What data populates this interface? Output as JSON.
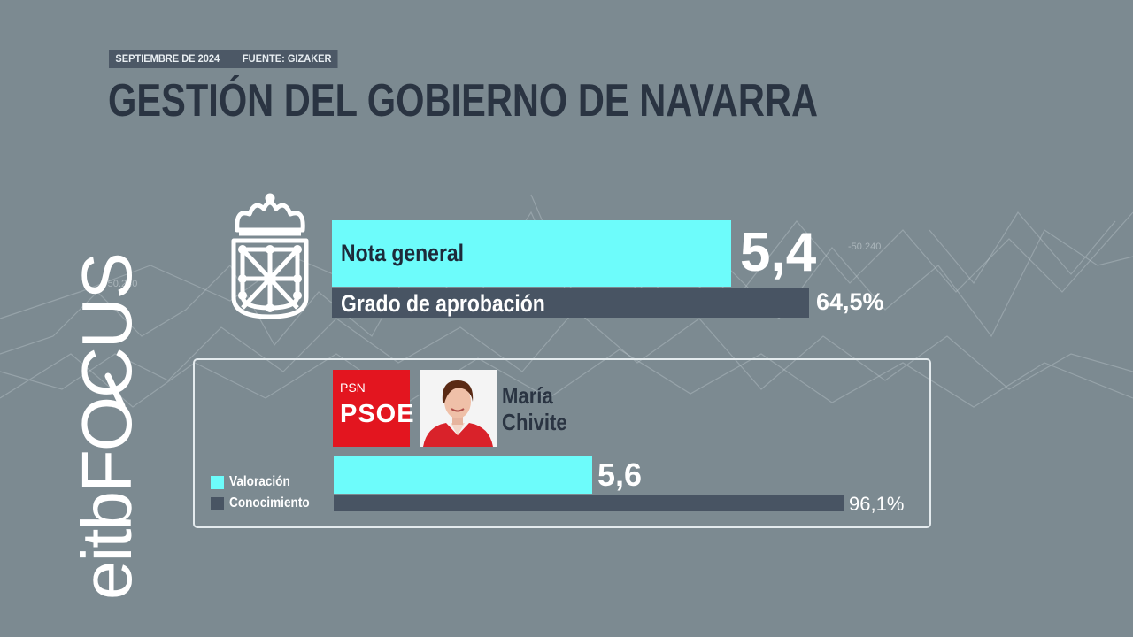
{
  "header": {
    "date": "SEPTIEMBRE DE 2024",
    "source": "FUENTE: GIZAKER",
    "title": "GESTIÓN DEL GOBIERNO DE NAVARRA"
  },
  "brand": {
    "logo_text": "eitbFOCUS",
    "logo_icon": "magnifier-icon"
  },
  "background": {
    "watermarks": [
      "-50.240",
      "-50.240"
    ]
  },
  "emblem": {
    "icon": "navarra-coat-of-arms-icon"
  },
  "colors": {
    "background": "#7c8a91",
    "cyan": "#6dfcfb",
    "dark_bar": "#485463",
    "title": "#2a3442",
    "party_red": "#e3151f"
  },
  "chart_data": [
    {
      "type": "bar",
      "orientation": "horizontal",
      "title": "",
      "categories": [
        "Nota general",
        "Grado de aprobación"
      ],
      "values": [
        5.4,
        64.5
      ],
      "display_values": [
        "5,4",
        "64,5%"
      ],
      "scales": [
        [
          0,
          10
        ],
        [
          0,
          100
        ]
      ]
    },
    {
      "type": "bar",
      "orientation": "horizontal",
      "title": "",
      "candidate": {
        "first_name": "María",
        "last_name": "Chivite",
        "party_small": "PSN",
        "party_big": "PSOE"
      },
      "legend": [
        "Valoración",
        "Conocimiento"
      ],
      "categories": [
        "Valoración",
        "Conocimiento"
      ],
      "values": [
        5.6,
        96.1
      ],
      "display_values": [
        "5,6",
        "96,1%"
      ],
      "scales": [
        [
          0,
          10
        ],
        [
          0,
          100
        ]
      ]
    }
  ]
}
